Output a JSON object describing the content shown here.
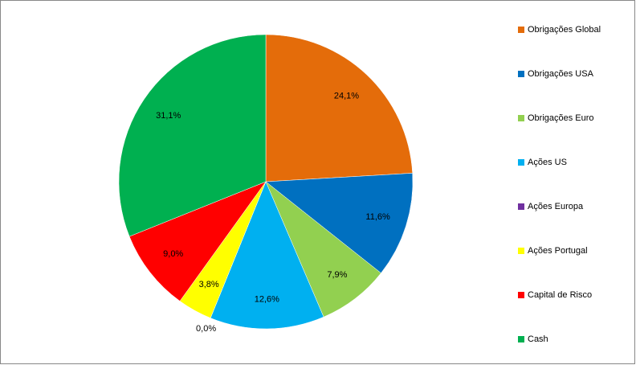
{
  "chart_data": {
    "type": "pie",
    "categories": [
      "Obrigações Global",
      "Obrigações USA",
      "Obrigações Euro",
      "Ações US",
      "Ações Europa",
      "Ações Portugal",
      "Capital de Risco",
      "Cash"
    ],
    "values": [
      24.1,
      11.6,
      7.9,
      12.6,
      0.0,
      3.8,
      9.0,
      31.1
    ],
    "value_labels": [
      "24,1%",
      "11,6%",
      "7,9%",
      "12,6%",
      "0,0%",
      "3,8%",
      "9,0%",
      "31,1%"
    ],
    "colors": [
      "#e46c0a",
      "#0070c0",
      "#92d050",
      "#00b0f0",
      "#7030a0",
      "#ffff00",
      "#ff0000",
      "#00b050"
    ],
    "legend": "right"
  }
}
